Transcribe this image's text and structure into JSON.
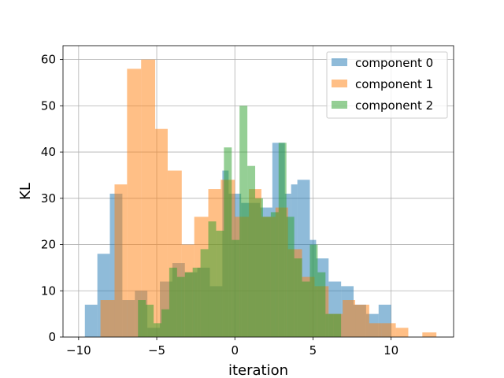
{
  "chart_data": {
    "type": "histogram",
    "title": "",
    "xlabel": "iteration",
    "ylabel": "KL",
    "xlim": [
      -11,
      14
    ],
    "ylim": [
      0,
      63
    ],
    "xticks": [
      -10,
      -5,
      0,
      5,
      10
    ],
    "xtick_labels": [
      "−10",
      "−5",
      "0",
      "5",
      "10"
    ],
    "yticks": [
      0,
      10,
      20,
      30,
      40,
      50,
      60
    ],
    "grid": true,
    "legend_position": "top-right",
    "series": [
      {
        "name": "component 0",
        "color": "#1f77b4",
        "opacity": 0.5,
        "bins": [
          [
            -9.6,
            -8.8,
            7
          ],
          [
            -8.8,
            -8.0,
            18
          ],
          [
            -8.0,
            -7.2,
            31
          ],
          [
            -7.2,
            -6.4,
            8
          ],
          [
            -6.4,
            -5.6,
            10
          ],
          [
            -5.6,
            -4.8,
            2
          ],
          [
            -4.8,
            -4.0,
            12
          ],
          [
            -4.0,
            -3.2,
            16
          ],
          [
            -3.2,
            -2.4,
            14
          ],
          [
            -2.4,
            -1.6,
            15
          ],
          [
            -1.6,
            -0.8,
            11
          ],
          [
            -0.8,
            -0.4,
            36
          ],
          [
            -0.4,
            0.4,
            31
          ],
          [
            0.4,
            1.2,
            29
          ],
          [
            1.2,
            1.6,
            29
          ],
          [
            1.6,
            2.0,
            28
          ],
          [
            2.0,
            2.4,
            28
          ],
          [
            2.4,
            3.2,
            42
          ],
          [
            3.2,
            3.6,
            31
          ],
          [
            3.6,
            4.0,
            33
          ],
          [
            4.0,
            4.8,
            34
          ],
          [
            4.8,
            5.2,
            21
          ],
          [
            5.2,
            6.0,
            17
          ],
          [
            6.0,
            6.8,
            12
          ],
          [
            6.8,
            7.6,
            11
          ],
          [
            7.6,
            8.4,
            7
          ],
          [
            8.4,
            9.2,
            5
          ],
          [
            9.2,
            10.0,
            7
          ]
        ]
      },
      {
        "name": "component 1",
        "color": "#ff7f0e",
        "opacity": 0.5,
        "bins": [
          [
            -8.6,
            -7.7,
            8
          ],
          [
            -7.7,
            -6.9,
            33
          ],
          [
            -6.9,
            -6.0,
            58
          ],
          [
            -6.0,
            -5.1,
            60
          ],
          [
            -5.1,
            -4.3,
            45
          ],
          [
            -4.3,
            -3.4,
            36
          ],
          [
            -3.4,
            -2.6,
            20
          ],
          [
            -2.6,
            -1.7,
            26
          ],
          [
            -1.7,
            -0.9,
            32
          ],
          [
            -0.9,
            0.0,
            34
          ],
          [
            0.0,
            0.9,
            26
          ],
          [
            0.9,
            1.7,
            32
          ],
          [
            1.7,
            2.6,
            26
          ],
          [
            2.6,
            3.4,
            28
          ],
          [
            3.4,
            4.3,
            19
          ],
          [
            4.3,
            5.1,
            13
          ],
          [
            5.1,
            6.0,
            11
          ],
          [
            6.0,
            6.9,
            5
          ],
          [
            6.9,
            7.7,
            8
          ],
          [
            7.7,
            8.6,
            7
          ],
          [
            8.6,
            9.4,
            3
          ],
          [
            9.4,
            10.3,
            3
          ],
          [
            10.3,
            11.1,
            2
          ],
          [
            11.1,
            12.0,
            0
          ],
          [
            12.0,
            12.9,
            1
          ]
        ]
      },
      {
        "name": "component 2",
        "color": "#2ca02c",
        "opacity": 0.5,
        "bins": [
          [
            -6.2,
            -5.7,
            8
          ],
          [
            -5.7,
            -5.2,
            7
          ],
          [
            -5.2,
            -4.7,
            3
          ],
          [
            -4.7,
            -4.2,
            6
          ],
          [
            -4.2,
            -3.7,
            15
          ],
          [
            -3.7,
            -3.2,
            13
          ],
          [
            -3.2,
            -2.7,
            14
          ],
          [
            -2.7,
            -2.2,
            15
          ],
          [
            -2.2,
            -1.7,
            19
          ],
          [
            -1.7,
            -1.2,
            25
          ],
          [
            -1.2,
            -0.7,
            23
          ],
          [
            -0.7,
            -0.2,
            41
          ],
          [
            -0.2,
            0.3,
            21
          ],
          [
            0.3,
            0.8,
            50
          ],
          [
            0.8,
            1.3,
            37
          ],
          [
            1.3,
            1.8,
            30
          ],
          [
            1.8,
            2.3,
            26
          ],
          [
            2.3,
            2.8,
            27
          ],
          [
            2.8,
            3.3,
            42
          ],
          [
            3.3,
            3.8,
            26
          ],
          [
            3.8,
            4.3,
            17
          ],
          [
            4.3,
            4.8,
            12
          ],
          [
            4.8,
            5.3,
            20
          ],
          [
            5.3,
            5.8,
            14
          ],
          [
            5.8,
            6.3,
            5
          ],
          [
            6.3,
            6.8,
            5
          ]
        ]
      }
    ]
  }
}
